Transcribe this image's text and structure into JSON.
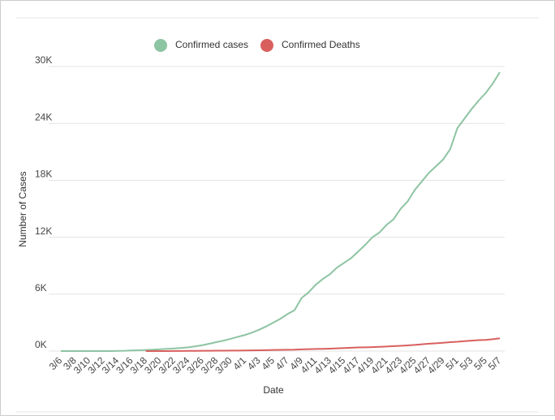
{
  "chart_data": {
    "type": "line",
    "x_label": "Date",
    "y_label": "Number of Cases",
    "categories": [
      "3/6",
      null,
      "3/8",
      null,
      "3/10",
      null,
      "3/12",
      null,
      "3/14",
      null,
      "3/16",
      null,
      "3/18",
      null,
      "3/20",
      null,
      "3/22",
      null,
      "3/24",
      null,
      "3/26",
      null,
      "3/28",
      null,
      "3/30",
      null,
      "4/1",
      null,
      "4/3",
      null,
      "4/5",
      null,
      "4/7",
      null,
      "4/9",
      null,
      "4/11",
      null,
      "4/13",
      null,
      "4/15",
      null,
      "4/17",
      null,
      "4/19",
      null,
      "4/21",
      null,
      "4/23",
      null,
      "4/25",
      null,
      "4/27",
      null,
      "4/29",
      null,
      "5/1",
      null,
      "5/3",
      null,
      "5/5",
      null,
      "5/7"
    ],
    "series": [
      {
        "name": "Confirmed cases",
        "color": "#8dc4a2",
        "values": [
          0,
          0,
          0,
          0,
          0,
          0,
          0,
          0,
          20,
          30,
          60,
          90,
          120,
          150,
          190,
          230,
          280,
          330,
          400,
          500,
          620,
          780,
          950,
          1100,
          1300,
          1500,
          1700,
          1950,
          2250,
          2600,
          3000,
          3400,
          3900,
          4300,
          5600,
          6200,
          7000,
          7600,
          8100,
          8800,
          9300,
          9800,
          10500,
          11200,
          12000,
          12500,
          13300,
          13900,
          15000,
          15800,
          17000,
          17900,
          18800,
          19500,
          20200,
          21300,
          23500,
          24500,
          25500,
          26400,
          27200,
          28200,
          29400
        ]
      },
      {
        "name": "Confirmed Deaths",
        "color": "#d95f5f",
        "values": [
          null,
          null,
          null,
          null,
          null,
          null,
          null,
          null,
          null,
          null,
          null,
          null,
          0,
          0,
          0,
          5,
          10,
          15,
          20,
          25,
          30,
          35,
          40,
          45,
          50,
          55,
          60,
          70,
          80,
          100,
          120,
          130,
          140,
          150,
          180,
          200,
          220,
          240,
          260,
          290,
          320,
          350,
          380,
          400,
          420,
          450,
          480,
          520,
          560,
          600,
          650,
          720,
          780,
          820,
          880,
          940,
          980,
          1050,
          1100,
          1150,
          1180,
          1250,
          1350
        ]
      }
    ],
    "ylim": [
      0,
      30000
    ],
    "yticks": [
      {
        "value": 0,
        "label": "0K"
      },
      {
        "value": 6000,
        "label": "6K"
      },
      {
        "value": 12000,
        "label": "12K"
      },
      {
        "value": 18000,
        "label": "18K"
      },
      {
        "value": 24000,
        "label": "24K"
      },
      {
        "value": 30000,
        "label": "30K"
      }
    ],
    "grid": true,
    "legend": "top"
  }
}
